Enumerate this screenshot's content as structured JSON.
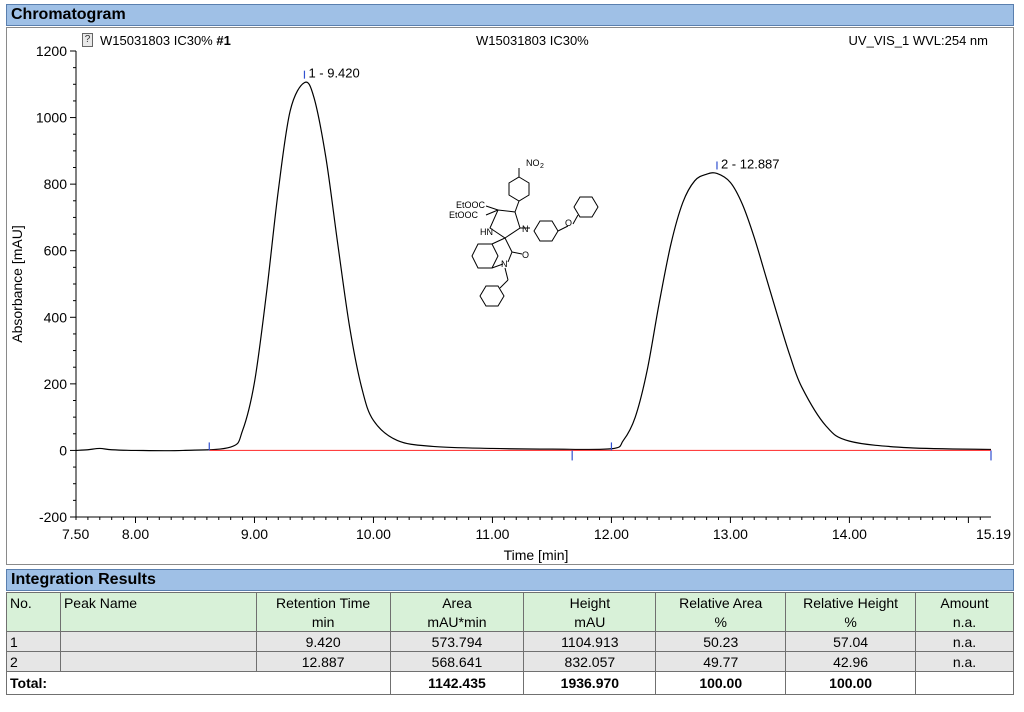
{
  "sections": {
    "chromatogram_title": "Chromatogram",
    "integration_title": "Integration Results"
  },
  "header": {
    "sample_left": "W15031803 IC30%",
    "sample_left_suffix": "#1",
    "sample_center": "W15031803 IC30%",
    "detector": "UV_VIS_1 WVL:254 nm"
  },
  "chart_data": {
    "type": "line",
    "title": "",
    "xlabel": "Time [min]",
    "ylabel": "Absorbance [mAU]",
    "xlim": [
      7.5,
      15.19
    ],
    "ylim": [
      -200,
      1200
    ],
    "x_ticks": [
      "7.50",
      "8.00",
      "9.00",
      "10.00",
      "11.00",
      "12.00",
      "13.00",
      "14.00",
      "15.19"
    ],
    "x_tick_values": [
      7.5,
      8.0,
      9.0,
      10.0,
      11.0,
      12.0,
      13.0,
      14.0,
      15.19
    ],
    "y_ticks": [
      "-200",
      "0",
      "200",
      "400",
      "600",
      "800",
      "1000",
      "1200"
    ],
    "y_tick_values": [
      -200,
      0,
      200,
      400,
      600,
      800,
      1000,
      1200
    ],
    "peaks": [
      {
        "label": "1 - 9.420",
        "rt": 9.42,
        "height": 1104.913
      },
      {
        "label": "2 - 12.887",
        "rt": 12.887,
        "height": 832.057
      }
    ],
    "baseline_markers": [
      8.62,
      11.67,
      12.0,
      15.19
    ],
    "series": [
      {
        "color": "#000000",
        "x": [
          7.5,
          7.6,
          7.7,
          7.8,
          8.0,
          8.4,
          8.8,
          8.9,
          9.0,
          9.1,
          9.2,
          9.3,
          9.42,
          9.5,
          9.6,
          9.7,
          9.8,
          9.9,
          10.0,
          10.2,
          10.5,
          11.0,
          11.5,
          12.0,
          12.1,
          12.2,
          12.3,
          12.4,
          12.5,
          12.6,
          12.7,
          12.8,
          12.887,
          13.0,
          13.1,
          13.2,
          13.3,
          13.4,
          13.5,
          13.6,
          13.8,
          14.0,
          14.5,
          15.19
        ],
        "y": [
          0,
          2,
          6,
          2,
          0,
          0,
          10,
          60,
          205,
          470,
          780,
          1020,
          1105,
          1060,
          880,
          620,
          370,
          190,
          90,
          30,
          12,
          6,
          4,
          5,
          30,
          100,
          240,
          440,
          620,
          745,
          810,
          830,
          832,
          805,
          740,
          640,
          520,
          400,
          285,
          190,
          75,
          28,
          8,
          3
        ]
      },
      {
        "color": "#ff4040",
        "x": [
          8.62,
          15.19
        ],
        "y": [
          0,
          0
        ]
      }
    ]
  },
  "integration": {
    "headers_top": [
      "No.",
      "Peak Name",
      "Retention Time",
      "Area",
      "Height",
      "Relative Area",
      "Relative Height",
      "Amount"
    ],
    "headers_unit": [
      "",
      "",
      "min",
      "mAU*min",
      "mAU",
      "%",
      "%",
      "n.a."
    ],
    "rows": [
      {
        "no": "1",
        "name": "",
        "rt": "9.420",
        "area": "573.794",
        "height": "1104.913",
        "rel_area": "50.23",
        "rel_height": "57.04",
        "amount": "n.a."
      },
      {
        "no": "2",
        "name": "",
        "rt": "12.887",
        "area": "568.641",
        "height": "832.057",
        "rel_area": "49.77",
        "rel_height": "42.96",
        "amount": "n.a."
      }
    ],
    "total": {
      "label": "Total:",
      "area": "1142.435",
      "height": "1936.970",
      "rel_area": "100.00",
      "rel_height": "100.00"
    }
  },
  "structure_labels": {
    "nitro": "NO",
    "nitro_sub": "2",
    "ester1": "EtOOC",
    "ester2": "EtOOC",
    "nh": "HN",
    "n_ring": "N",
    "o_ether": "O",
    "o_carbonyl": "O",
    "n_lactam": "N"
  }
}
